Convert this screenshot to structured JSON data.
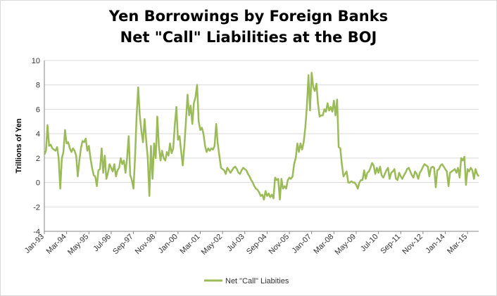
{
  "chart_data": {
    "type": "line",
    "title_line1": "Yen Borrowings by Foreign Banks",
    "title_line2": "Net \"Call\" Liabilities at the BOJ",
    "ylabel": "Trillions of Yen",
    "xlabel": "",
    "ylim": [
      -4,
      10
    ],
    "yticks": [
      -4,
      -2,
      0,
      2,
      4,
      6,
      8,
      10
    ],
    "x_ticks": [
      "Jan-93",
      "Mar-94",
      "May-95",
      "Jul-96",
      "Sep-97",
      "Nov-98",
      "Jan-00",
      "Mar-01",
      "May-02",
      "Jul-03",
      "Sep-04",
      "Nov-05",
      "Jan-07",
      "Mar-08",
      "May-09",
      "Jul-10",
      "Sep-11",
      "Nov-12",
      "Jan-14",
      "Mar-15"
    ],
    "grid": true,
    "legend_position": "bottom",
    "series": [
      {
        "name": "Net \"Call\" Liabities",
        "color": "#9bbb59",
        "x_start": "Jan-93",
        "frequency": "monthly",
        "values": [
          2.3,
          2.6,
          4.7,
          3.0,
          3.1,
          2.8,
          2.7,
          2.6,
          2.9,
          2.0,
          -0.5,
          2.0,
          2.5,
          4.3,
          3.2,
          3.3,
          2.8,
          2.5,
          2.8,
          2.6,
          2.2,
          0.5,
          1.8,
          2.8,
          3.4,
          3.3,
          3.6,
          2.6,
          3.0,
          2.0,
          1.2,
          0.6,
          0.5,
          -0.3,
          1.0,
          1.1,
          2.8,
          0.8,
          2.2,
          0.3,
          0.8,
          1.5,
          1.2,
          0.9,
          1.5,
          0.5,
          1.0,
          1.2,
          2.0,
          1.5,
          1.8,
          0.8,
          2.0,
          3.8,
          0.6,
          0.2,
          -0.5,
          2.0,
          5.5,
          7.8,
          5.5,
          4.2,
          3.3,
          5.2,
          3.5,
          2.0,
          -1.1,
          3.0,
          0.3,
          3.2,
          2.0,
          5.4,
          3.0,
          1.8,
          2.6,
          2.0,
          1.8,
          2.5,
          2.2,
          3.2,
          2.4,
          2.8,
          4.7,
          6.2,
          3.5,
          3.8,
          2.5,
          1.4,
          3.0,
          5.0,
          7.2,
          5.5,
          6.3,
          4.8,
          6.5,
          7.0,
          8.0,
          5.0,
          4.3,
          4.5,
          4.0,
          3.0,
          2.5,
          2.8,
          2.6,
          2.8,
          2.7,
          3.0,
          4.8,
          3.2,
          2.2,
          1.2,
          1.1,
          1.0,
          0.7,
          1.2,
          1.0,
          0.8,
          1.0,
          1.2,
          1.3,
          1.1,
          0.8,
          0.7,
          1.0,
          1.2,
          1.1,
          1.0,
          0.7,
          0.5,
          0.2,
          0.0,
          -0.3,
          -0.5,
          -0.6,
          -0.8,
          -1.1,
          -1.0,
          -1.4,
          -0.7,
          -1.1,
          -0.9,
          -1.2,
          -1.0,
          -1.3,
          0.4,
          0.2,
          0.3,
          -1.4,
          0.3,
          -0.5,
          -0.3,
          -0.5,
          0.2,
          0.4,
          0.3,
          0.5,
          1.5,
          2.0,
          3.2,
          2.5,
          3.2,
          2.7,
          3.3,
          4.5,
          6.2,
          8.8,
          5.9,
          9.0,
          7.8,
          7.5,
          8.1,
          6.5,
          5.4,
          5.5,
          5.5,
          6.0,
          5.8,
          6.5,
          5.9,
          6.2,
          5.8,
          6.7,
          5.5,
          6.8,
          2.9,
          2.8,
          1.5,
          0.5,
          0.7,
          0.9,
          0.0,
          0.0,
          0.1,
          0.0,
          0.0,
          -0.2,
          -0.5,
          0.0,
          0.2,
          0.2,
          1.0,
          0.3,
          0.8,
          0.9,
          1.2,
          1.6,
          1.4,
          0.7,
          1.2,
          0.8,
          1.3,
          0.6,
          0.4,
          0.7,
          1.0,
          1.2,
          0.3,
          0.8,
          0.9,
          1.1,
          0.3,
          0.2,
          0.8,
          0.5,
          0.3,
          0.6,
          0.8,
          1.1,
          1.2,
          0.9,
          0.6,
          0.4,
          0.9,
          0.7,
          0.3,
          0.8,
          1.0,
          1.3,
          1.5,
          1.4,
          1.3,
          0.5,
          1.2,
          1.3,
          1.2,
          -0.4,
          1.0,
          1.1,
          1.4,
          1.5,
          1.3,
          1.1,
          0.9,
          -0.3,
          0.8,
          0.9,
          1.0,
          1.1,
          0.8,
          1.2,
          0.4,
          2.0,
          1.8,
          2.1,
          -0.2,
          1.1,
          0.9,
          1.2,
          1.0,
          0.3,
          1.1,
          0.7,
          0.5
        ]
      }
    ]
  }
}
